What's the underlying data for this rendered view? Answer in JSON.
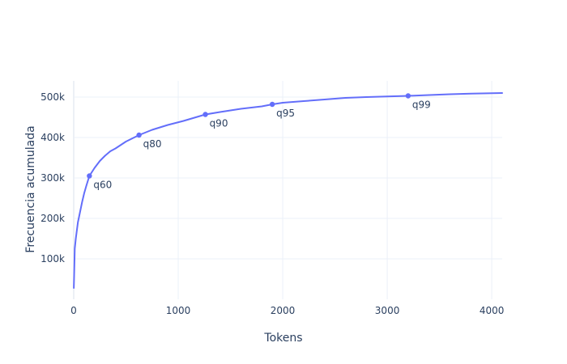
{
  "chart_data": {
    "type": "line",
    "title": "",
    "xlabel": "Tokens",
    "ylabel": "Frecuencia acumulada",
    "xlim": [
      0,
      4100
    ],
    "ylim": [
      0,
      540000
    ],
    "grid": true,
    "x_ticks": [
      {
        "value": 0,
        "label": "0"
      },
      {
        "value": 1000,
        "label": "1000"
      },
      {
        "value": 2000,
        "label": "2000"
      },
      {
        "value": 3000,
        "label": "3000"
      },
      {
        "value": 4000,
        "label": "4000"
      }
    ],
    "y_ticks": [
      {
        "value": 100000,
        "label": "100k"
      },
      {
        "value": 200000,
        "label": "200k"
      },
      {
        "value": 300000,
        "label": "300k"
      },
      {
        "value": 400000,
        "label": "400k"
      },
      {
        "value": 500000,
        "label": "500k"
      }
    ],
    "line_color": "#636efa",
    "series": [
      {
        "x": [
          1,
          5,
          10,
          20,
          40,
          60,
          80,
          100,
          120,
          150,
          200,
          250,
          300,
          350,
          400,
          500,
          625,
          750,
          900,
          1050,
          1260,
          1400,
          1600,
          1800,
          1900,
          2000,
          2200,
          2400,
          2600,
          2800,
          3000,
          3200,
          3400,
          3600,
          3800,
          4000,
          4100
        ],
        "y": [
          28000,
          70000,
          125000,
          150000,
          190000,
          215000,
          240000,
          262000,
          280000,
          305000,
          325000,
          342000,
          355000,
          366000,
          373000,
          390000,
          406000,
          419000,
          431000,
          441000,
          457000,
          463000,
          471000,
          477000,
          482000,
          486000,
          490000,
          494000,
          498000,
          500000,
          501500,
          503000,
          505000,
          507000,
          508500,
          509500,
          510000
        ]
      }
    ],
    "markers": [
      {
        "x": 150,
        "y": 305000,
        "label": "q60"
      },
      {
        "x": 625,
        "y": 406000,
        "label": "q80"
      },
      {
        "x": 1260,
        "y": 457000,
        "label": "q90"
      },
      {
        "x": 1900,
        "y": 482000,
        "label": "q95"
      },
      {
        "x": 3200,
        "y": 503000,
        "label": "q99"
      }
    ]
  }
}
